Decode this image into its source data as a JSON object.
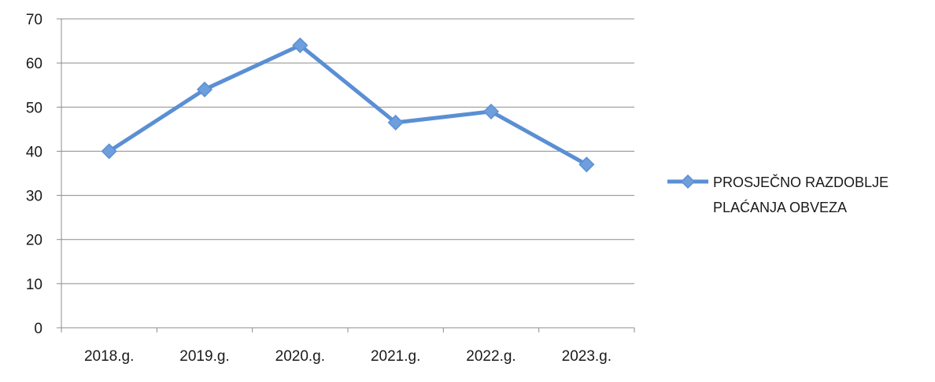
{
  "chart_data": {
    "type": "line",
    "categories": [
      "2018.g.",
      "2019.g.",
      "2020.g.",
      "2021.g.",
      "2022.g.",
      "2023.g."
    ],
    "series": [
      {
        "name": "PROSJEČNO RAZDOBLJE PLAĆANJA OBVEZA",
        "name_lines": [
          "PROSJEČNO RAZDOBLJE",
          "PLAĆANJA OBVEZA"
        ],
        "values": [
          40,
          54,
          64,
          46.5,
          49,
          37
        ]
      }
    ],
    "ylim": [
      0,
      70
    ],
    "yticks": [
      0,
      10,
      20,
      30,
      40,
      50,
      60,
      70
    ],
    "grid": true,
    "legend_position": "right",
    "series_color": "#5b8fd4",
    "marker_color": "#6e9fdc",
    "grid_color": "#8c8c8c"
  }
}
